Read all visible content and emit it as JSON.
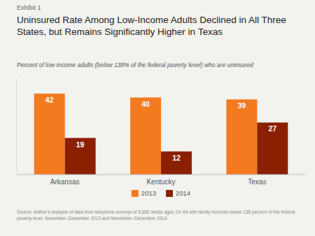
{
  "chart_data": {
    "type": "bar",
    "title": "Uninsured Rate Among Low-Income Adults Declined in All Three\nStates, but Remains Significantly Higher in Texas",
    "subtitle": "Percent of low-income adults (below 138% of the federal poverty level) who are uninsured",
    "annotations": [
      "Exhibit 1",
      "Source: Author’s analysis of data from telephone surveys of 5,665 adults ages 19–64 with family incomes below 138 percent of the federal\npoverty level, November–December 2013 and November–December 2014."
    ],
    "categories": [
      "Arkansas",
      "Kentucky",
      "Texas"
    ],
    "series": [
      {
        "name": "2013",
        "color": "#F47A20",
        "values": [
          42,
          40,
          39
        ]
      },
      {
        "name": "2014",
        "color": "#8B2000",
        "values": [
          19,
          12,
          27
        ]
      }
    ],
    "ylim": [
      0,
      50
    ],
    "grid": false,
    "legend": "bottom",
    "data_labels": true,
    "tick_labels": "x"
  }
}
